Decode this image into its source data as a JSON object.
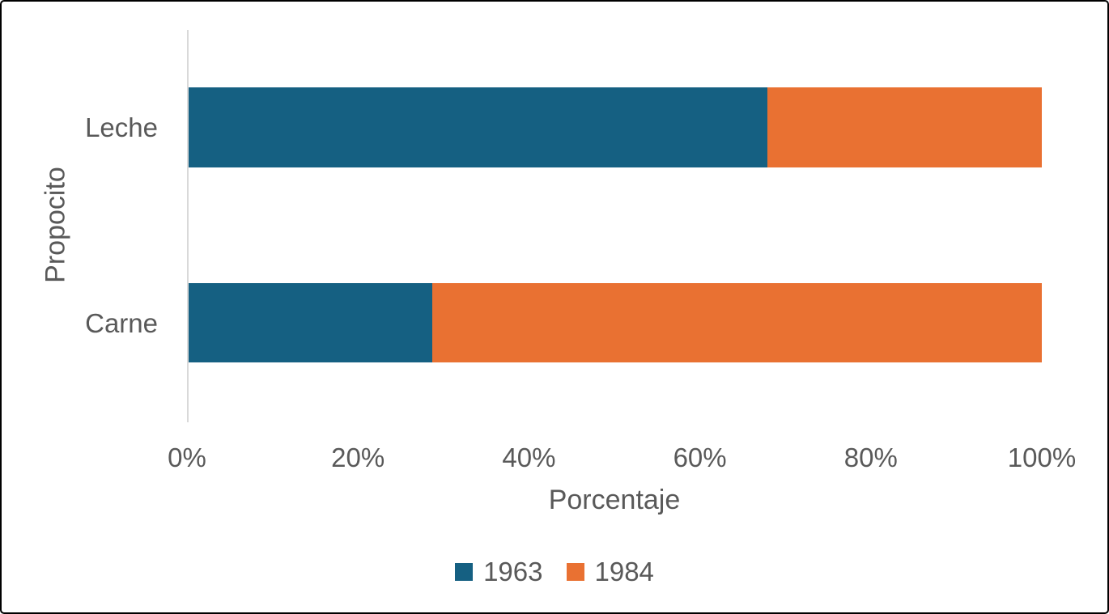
{
  "chart_data": {
    "type": "bar",
    "orientation": "horizontal",
    "stacked": true,
    "title": "",
    "xlabel": "Porcentaje",
    "ylabel": "Propocito",
    "categories": [
      "Leche",
      "Carne"
    ],
    "series": [
      {
        "name": "1963",
        "color": "#156082",
        "values": [
          67.8,
          28.6
        ]
      },
      {
        "name": "1984",
        "color": "#E97132",
        "values": [
          32.2,
          71.4
        ]
      }
    ],
    "xlim": [
      0,
      100
    ],
    "xticks": [
      "0%",
      "20%",
      "40%",
      "60%",
      "80%",
      "100%"
    ],
    "legend_position": "bottom",
    "grid": false
  },
  "colors": {
    "background": "#FFFFFF",
    "frame_border": "#000000",
    "axis_line": "#D9D9D9",
    "text": "#595959",
    "series_1963": "#156082",
    "series_1984": "#E97132"
  }
}
